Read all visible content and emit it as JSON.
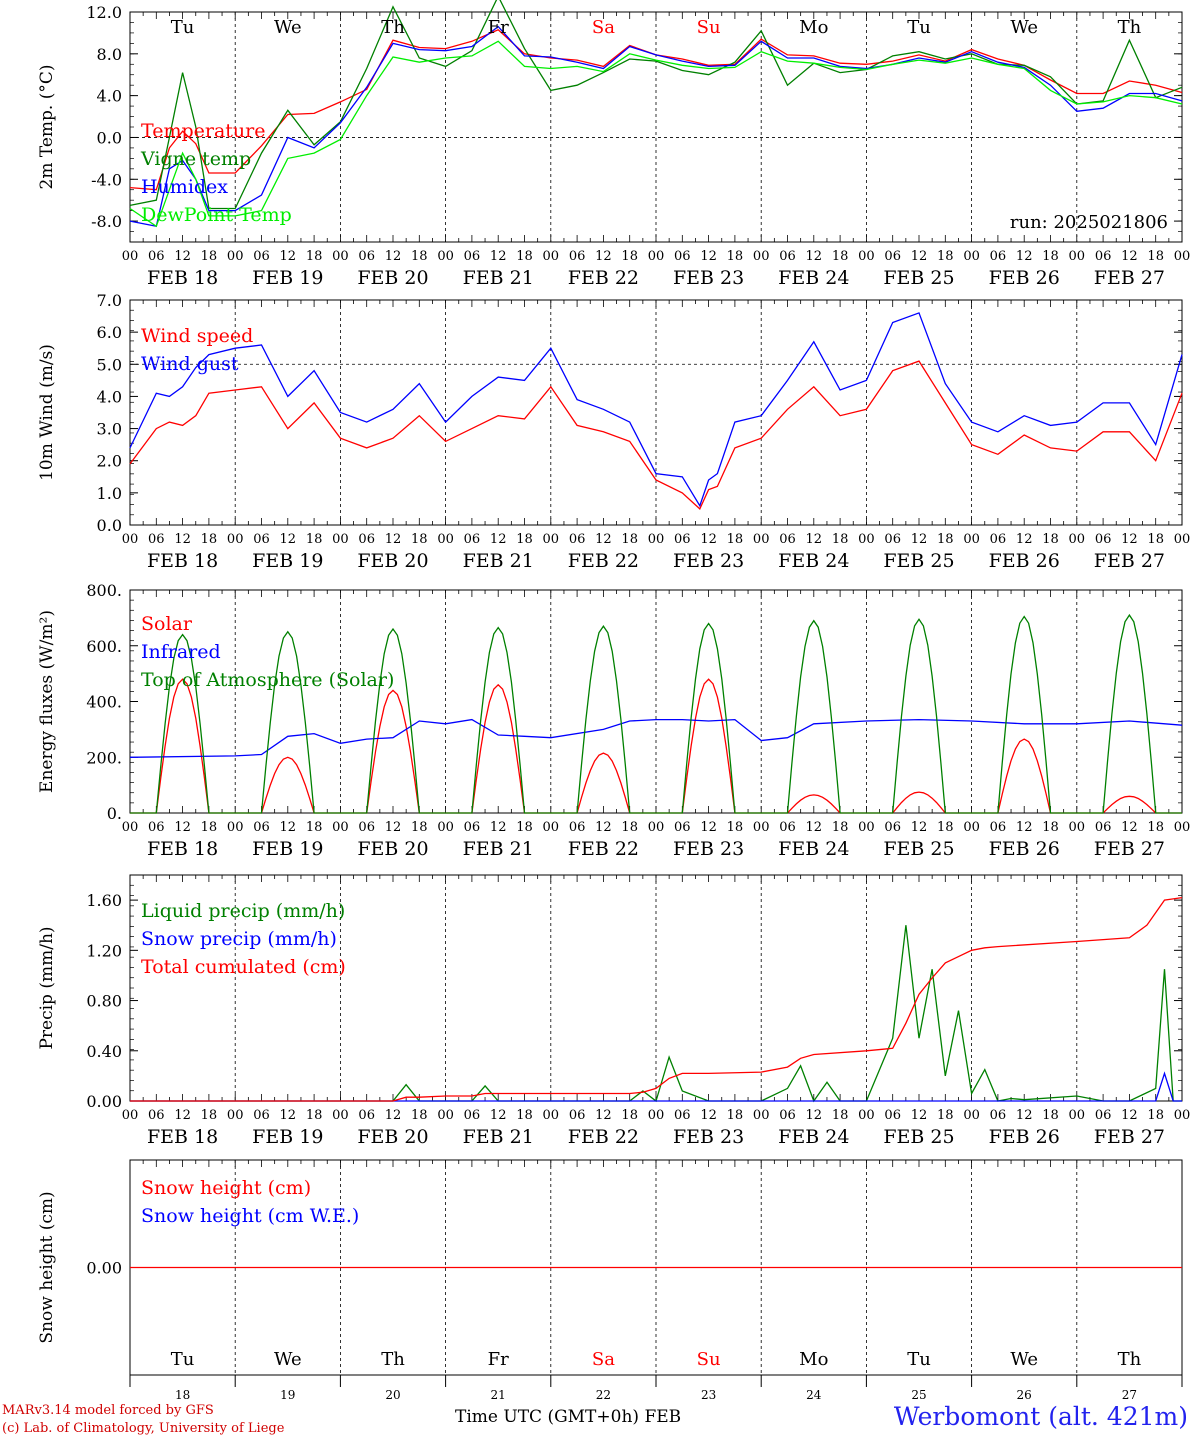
{
  "colors": {
    "red": "#ff0000",
    "blue": "#0000ff",
    "green": "#008000",
    "lime": "#00ee00",
    "black": "#000000",
    "title_blue": "#2222ee",
    "credit_red": "#d00000"
  },
  "days": [
    "Tu",
    "We",
    "Th",
    "Fr",
    "Sa",
    "Su",
    "Mo",
    "Tu",
    "We",
    "Th"
  ],
  "weekend_days": [
    "Sa",
    "Su"
  ],
  "dates": [
    "FEB 18",
    "FEB 19",
    "FEB 20",
    "FEB 21",
    "FEB 22",
    "FEB 23",
    "FEB 24",
    "FEB 25",
    "FEB 26",
    "FEB 27"
  ],
  "day_numbers": [
    "18",
    "19",
    "20",
    "21",
    "22",
    "23",
    "24",
    "25",
    "26",
    "27"
  ],
  "hour_labels": [
    "00",
    "06",
    "12",
    "18"
  ],
  "footer": {
    "credit_line1": "MARv3.14 model forced by GFS",
    "credit_line2": "(c) Lab. of Climatology, University of Liege",
    "time_title": "Time UTC (GMT+0h) FEB",
    "station": "Werbomont (alt. 421m)"
  },
  "chart_data": [
    {
      "type": "line",
      "ylabel": "2m Temp. (°C)",
      "annotation": "run: 2025021806",
      "yticks": [
        "12.0",
        "8.0",
        "4.0",
        "0.0",
        "-4.0",
        "-8.0"
      ],
      "ylim": [
        -10,
        12
      ],
      "ref_line": 0,
      "x_unit": "hours since Feb 18 00 UTC",
      "series": [
        {
          "name": "Temperature",
          "color": "#ff0000",
          "x": [
            0,
            6,
            9,
            12,
            15,
            18,
            24,
            30,
            36,
            42,
            48,
            54,
            60,
            66,
            72,
            78,
            84,
            90,
            96,
            102,
            108,
            114,
            120,
            126,
            132,
            138,
            144,
            150,
            156,
            162,
            168,
            174,
            180,
            186,
            192,
            198,
            204,
            210,
            216,
            222,
            228,
            234,
            240
          ],
          "y": [
            -4.8,
            -5,
            -1,
            0.6,
            -0.6,
            -3.4,
            -3.4,
            -0.8,
            2.2,
            2.3,
            3.4,
            4.6,
            9.3,
            8.6,
            8.5,
            9.2,
            10.3,
            8,
            7.6,
            7.4,
            6.8,
            8.8,
            7.9,
            7.5,
            6.9,
            7.0,
            9.4,
            7.9,
            7.8,
            7.1,
            7.0,
            7.3,
            7.9,
            7.3,
            8.4,
            7.5,
            6.9,
            5.5,
            4.2,
            4.2,
            5.4,
            5.0,
            4.3
          ]
        },
        {
          "name": "Vigne temp",
          "color": "#008000",
          "x": [
            0,
            6,
            9,
            12,
            15,
            18,
            24,
            30,
            36,
            42,
            48,
            54,
            60,
            66,
            72,
            78,
            84,
            90,
            96,
            102,
            108,
            114,
            120,
            126,
            132,
            138,
            144,
            150,
            156,
            162,
            168,
            174,
            180,
            186,
            192,
            198,
            204,
            210,
            216,
            222,
            228,
            234,
            240
          ],
          "y": [
            -6.5,
            -6,
            0,
            6.2,
            1,
            -6.8,
            -6.8,
            -1.5,
            2.6,
            -0.7,
            1.5,
            6.6,
            12.5,
            7.6,
            6.8,
            8.3,
            13.5,
            8.5,
            4.5,
            5.0,
            6.2,
            7.5,
            7.3,
            6.4,
            6.0,
            7.2,
            10.2,
            5.0,
            7.1,
            6.2,
            6.5,
            7.8,
            8.2,
            7.5,
            8.0,
            7.0,
            6.9,
            5.8,
            3.2,
            3.5,
            9.3,
            3.8,
            4.8
          ]
        },
        {
          "name": "Humidex",
          "color": "#0000ff",
          "x": [
            0,
            6,
            9,
            12,
            15,
            18,
            24,
            30,
            36,
            42,
            48,
            54,
            60,
            66,
            72,
            78,
            84,
            90,
            96,
            102,
            108,
            114,
            120,
            126,
            132,
            138,
            144,
            150,
            156,
            162,
            168,
            174,
            180,
            186,
            192,
            198,
            204,
            210,
            216,
            222,
            228,
            234,
            240
          ],
          "y": [
            -8,
            -8.5,
            -3,
            -2.2,
            -4,
            -7,
            -7,
            -5.5,
            0,
            -1,
            1.4,
            4.8,
            9.0,
            8.4,
            8.3,
            8.7,
            10.6,
            7.8,
            7.7,
            7.2,
            6.6,
            8.7,
            7.9,
            7.3,
            6.8,
            6.9,
            9.2,
            7.6,
            7.6,
            6.8,
            6.6,
            7.0,
            7.6,
            7.2,
            8.2,
            7.2,
            6.7,
            5.0,
            2.5,
            2.8,
            4.2,
            4.2,
            3.5
          ]
        },
        {
          "name": "DewPoint Temp",
          "color": "#00ee00",
          "x": [
            0,
            6,
            9,
            12,
            15,
            18,
            24,
            30,
            36,
            42,
            48,
            54,
            60,
            66,
            72,
            78,
            84,
            90,
            96,
            102,
            108,
            114,
            120,
            126,
            132,
            138,
            144,
            150,
            156,
            162,
            168,
            174,
            180,
            186,
            192,
            198,
            204,
            210,
            216,
            222,
            228,
            234,
            240
          ],
          "y": [
            -6.8,
            -8.5,
            -5,
            -1.5,
            -4,
            -7.5,
            -7.5,
            -7,
            -2,
            -1.5,
            -0.2,
            4,
            7.7,
            7.2,
            7.6,
            7.8,
            9.2,
            6.8,
            6.6,
            6.8,
            6.3,
            8.0,
            7.4,
            6.9,
            6.6,
            6.7,
            8.2,
            7.3,
            7.1,
            6.7,
            6.5,
            7.0,
            7.4,
            7.1,
            7.6,
            7.0,
            6.6,
            4.5,
            3.2,
            3.4,
            4.0,
            3.8,
            3.2
          ]
        }
      ]
    },
    {
      "type": "line",
      "ylabel": "10m Wind (m/s)",
      "yticks": [
        "7.0",
        "6.0",
        "5.0",
        "4.0",
        "3.0",
        "2.0",
        "1.0",
        "0.0"
      ],
      "ylim": [
        0,
        7
      ],
      "ref_line": 5,
      "series": [
        {
          "name": "Wind speed",
          "color": "#ff0000",
          "x": [
            0,
            6,
            9,
            12,
            15,
            18,
            24,
            30,
            36,
            42,
            48,
            54,
            60,
            66,
            72,
            78,
            84,
            90,
            96,
            102,
            108,
            114,
            120,
            126,
            130,
            132,
            134,
            138,
            144,
            150,
            156,
            162,
            168,
            174,
            180,
            186,
            192,
            198,
            204,
            210,
            216,
            222,
            228,
            234,
            240
          ],
          "y": [
            1.9,
            3.0,
            3.2,
            3.1,
            3.4,
            4.1,
            4.2,
            4.3,
            3.0,
            3.8,
            2.7,
            2.4,
            2.7,
            3.4,
            2.6,
            3.0,
            3.4,
            3.3,
            4.3,
            3.1,
            2.9,
            2.6,
            1.4,
            1.0,
            0.5,
            1.1,
            1.2,
            2.4,
            2.7,
            3.6,
            4.3,
            3.4,
            3.6,
            4.8,
            5.1,
            3.8,
            2.5,
            2.2,
            2.8,
            2.4,
            2.3,
            2.9,
            2.9,
            2.0,
            4.1
          ]
        },
        {
          "name": "Wind gust",
          "color": "#0000ff",
          "x": [
            0,
            6,
            9,
            12,
            15,
            18,
            24,
            30,
            36,
            42,
            48,
            54,
            60,
            66,
            72,
            78,
            84,
            90,
            96,
            102,
            108,
            114,
            120,
            126,
            130,
            132,
            134,
            138,
            144,
            150,
            156,
            162,
            168,
            174,
            180,
            186,
            192,
            198,
            204,
            210,
            216,
            222,
            228,
            234,
            240
          ],
          "y": [
            2.4,
            4.1,
            4.0,
            4.3,
            4.9,
            5.3,
            5.5,
            5.6,
            4.0,
            4.8,
            3.5,
            3.2,
            3.6,
            4.4,
            3.2,
            4.0,
            4.6,
            4.5,
            5.5,
            3.9,
            3.6,
            3.2,
            1.6,
            1.5,
            0.6,
            1.4,
            1.6,
            3.2,
            3.4,
            4.5,
            5.7,
            4.2,
            4.5,
            6.3,
            6.6,
            4.4,
            3.2,
            2.9,
            3.4,
            3.1,
            3.2,
            3.8,
            3.8,
            2.5,
            5.3
          ]
        }
      ]
    },
    {
      "type": "line",
      "ylabel": "Energy fluxes (W/m²)",
      "yticks": [
        "800.",
        "600.",
        "400.",
        "200.",
        "0."
      ],
      "ylim": [
        0,
        800
      ],
      "series": [
        {
          "name": "Solar",
          "color": "#ff0000",
          "peaks": [
            {
              "day": 0,
              "peak": 480
            },
            {
              "day": 1,
              "peak": 200
            },
            {
              "day": 2,
              "peak": 440
            },
            {
              "day": 3,
              "peak": 460
            },
            {
              "day": 4,
              "peak": 215
            },
            {
              "day": 5,
              "peak": 480
            },
            {
              "day": 6,
              "peak": 65
            },
            {
              "day": 7,
              "peak": 75
            },
            {
              "day": 8,
              "peak": 265
            },
            {
              "day": 9,
              "peak": 60
            }
          ]
        },
        {
          "name": "Infrared",
          "color": "#0000ff",
          "x": [
            0,
            24,
            30,
            36,
            42,
            48,
            54,
            60,
            66,
            72,
            78,
            84,
            90,
            96,
            108,
            114,
            120,
            126,
            132,
            138,
            144,
            150,
            156,
            168,
            180,
            192,
            204,
            216,
            228,
            240
          ],
          "y": [
            200,
            205,
            210,
            275,
            285,
            250,
            265,
            270,
            330,
            320,
            335,
            280,
            275,
            270,
            300,
            330,
            335,
            335,
            330,
            335,
            260,
            270,
            320,
            330,
            335,
            330,
            320,
            320,
            330,
            315
          ]
        },
        {
          "name": "Top of Atmosphere (Solar)",
          "color": "#008000",
          "peaks": [
            {
              "day": 0,
              "peak": 640
            },
            {
              "day": 1,
              "peak": 650
            },
            {
              "day": 2,
              "peak": 660
            },
            {
              "day": 3,
              "peak": 665
            },
            {
              "day": 4,
              "peak": 670
            },
            {
              "day": 5,
              "peak": 680
            },
            {
              "day": 6,
              "peak": 690
            },
            {
              "day": 7,
              "peak": 695
            },
            {
              "day": 8,
              "peak": 705
            },
            {
              "day": 9,
              "peak": 710
            }
          ]
        }
      ]
    },
    {
      "type": "line",
      "ylabel": "Precip (mm/h)",
      "yticks": [
        "1.60",
        "1.20",
        "0.80",
        "0.40",
        "0.00"
      ],
      "ylim": [
        0,
        1.8
      ],
      "series": [
        {
          "name": "Liquid precip (mm/h)",
          "color": "#008000",
          "x": [
            0,
            48,
            60,
            63,
            66,
            72,
            78,
            81,
            84,
            114,
            117,
            120,
            123,
            126,
            132,
            144,
            150,
            153,
            156,
            159,
            162,
            168,
            174,
            177,
            180,
            183,
            186,
            189,
            192,
            195,
            198,
            201,
            204,
            216,
            222,
            228,
            234,
            236,
            238,
            240
          ],
          "y": [
            0,
            0,
            0,
            0.13,
            0,
            0,
            0,
            0.12,
            0,
            0,
            0.08,
            0,
            0.35,
            0.08,
            0,
            0,
            0.1,
            0.28,
            0,
            0.15,
            0,
            0,
            0.5,
            1.4,
            0.5,
            1.05,
            0.2,
            0.72,
            0.06,
            0.25,
            0,
            0.02,
            0.01,
            0.04,
            0,
            0,
            0.1,
            1.05,
            0,
            0
          ]
        },
        {
          "name": "Snow precip (mm/h)",
          "color": "#0000ff",
          "x": [
            0,
            228,
            234,
            236,
            238,
            240
          ],
          "y": [
            0,
            0,
            0,
            0.22,
            0,
            0
          ]
        },
        {
          "name": "Total cumulated (cm)",
          "color": "#ff0000",
          "x": [
            0,
            48,
            60,
            63,
            66,
            72,
            78,
            81,
            84,
            114,
            117,
            120,
            123,
            126,
            132,
            144,
            150,
            153,
            156,
            168,
            174,
            177,
            180,
            183,
            186,
            189,
            192,
            195,
            198,
            216,
            228,
            232,
            236,
            240
          ],
          "y": [
            0,
            0,
            0,
            0.03,
            0.03,
            0.04,
            0.04,
            0.06,
            0.06,
            0.06,
            0.07,
            0.1,
            0.18,
            0.22,
            0.22,
            0.23,
            0.27,
            0.34,
            0.37,
            0.4,
            0.42,
            0.62,
            0.85,
            0.98,
            1.1,
            1.15,
            1.2,
            1.22,
            1.23,
            1.27,
            1.3,
            1.4,
            1.6,
            1.62
          ]
        }
      ]
    },
    {
      "type": "line",
      "ylabel": "Snow height (cm)",
      "yticks": [
        "0.00"
      ],
      "ylim": [
        -1,
        1
      ],
      "series": [
        {
          "name": "Snow height (cm)",
          "color": "#ff0000",
          "x": [
            0,
            240
          ],
          "y": [
            0,
            0
          ]
        },
        {
          "name": "Snow height (cm W.E.)",
          "color": "#0000ff",
          "x": [],
          "y": []
        }
      ]
    }
  ]
}
